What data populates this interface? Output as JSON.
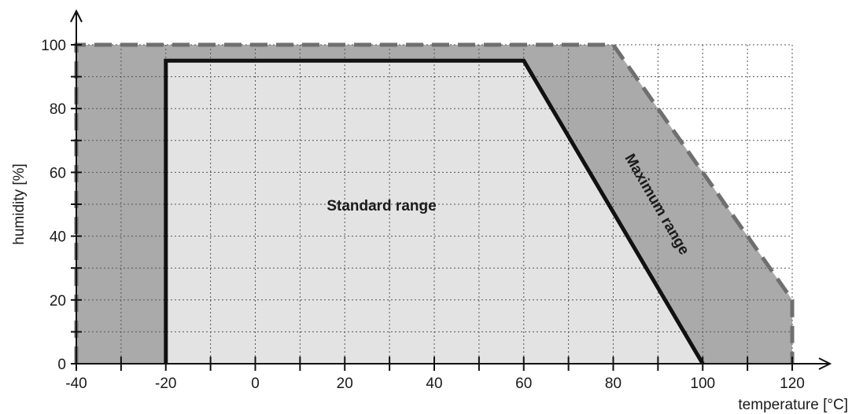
{
  "chart_data": {
    "type": "area",
    "title": "",
    "xlabel": "temperature [°C]",
    "ylabel": "humidity [%]",
    "xlim": [
      -40,
      120
    ],
    "ylim": [
      0,
      100
    ],
    "xticks": [
      -40,
      -20,
      0,
      20,
      40,
      60,
      80,
      100,
      120
    ],
    "yticks": [
      0,
      20,
      40,
      60,
      80,
      100
    ],
    "grid": true,
    "series": [
      {
        "name": "Maximum range",
        "x": [
          -40,
          -40,
          80,
          120,
          120
        ],
        "y": [
          0,
          100,
          100,
          20,
          0
        ],
        "fill_color": "#aaaaaa",
        "line_color": "#6f6f6f",
        "line_style": "dashed"
      },
      {
        "name": "Standard range",
        "x": [
          -20,
          -20,
          60,
          100
        ],
        "y": [
          0,
          95,
          95,
          0
        ],
        "fill_color": "#e3e3e3",
        "line_color": "#111111",
        "line_style": "solid"
      }
    ]
  }
}
